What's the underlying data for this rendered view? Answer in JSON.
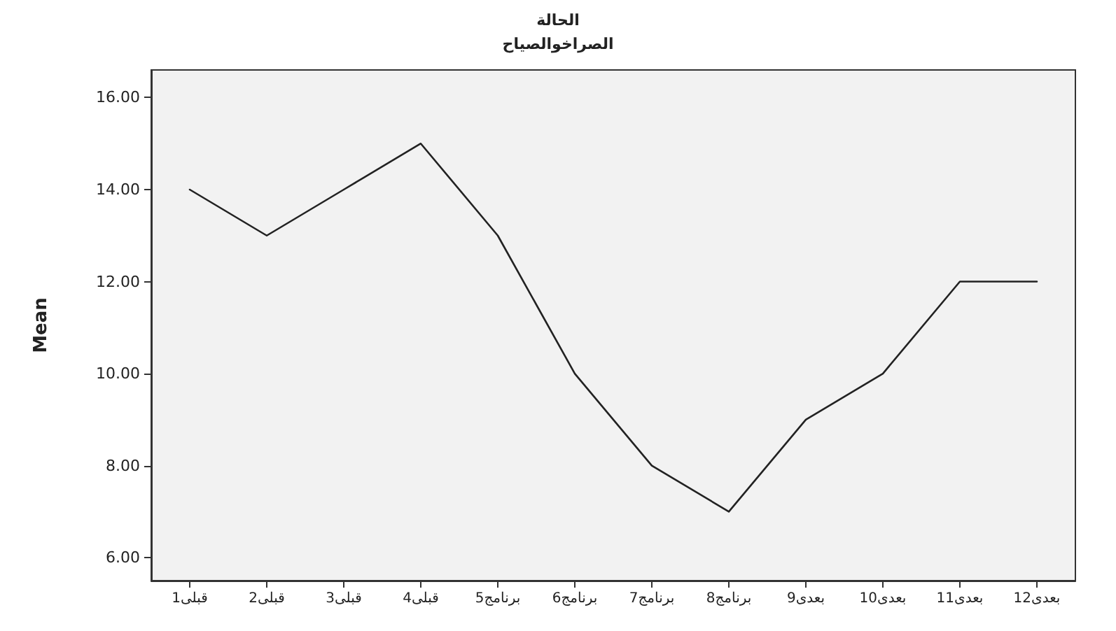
{
  "chart_data": {
    "type": "line",
    "title": "الحالة",
    "subtitle": "الصراخوالصياح",
    "ylabel": "Mean",
    "categories": [
      "قبلى1",
      "قبلى2",
      "قبلى3",
      "قبلى4",
      "برنامج5",
      "برنامج6",
      "برنامج7",
      "برنامج8",
      "بعدى9",
      "بعدى10",
      "بعدى11",
      "بعدى12"
    ],
    "values": [
      14,
      13,
      14,
      15,
      13,
      10,
      8,
      7,
      9,
      10,
      12,
      12
    ],
    "color": "#222222",
    "ylim": [
      5.5,
      16.6
    ],
    "yticks": [
      {
        "value": 6,
        "label": "6.00"
      },
      {
        "value": 8,
        "label": "8.00"
      },
      {
        "value": 10,
        "label": "10.00"
      },
      {
        "value": 12,
        "label": "12.00"
      },
      {
        "value": 14,
        "label": "14.00"
      },
      {
        "value": 16,
        "label": "16.00"
      }
    ],
    "grid": false,
    "marker": "none"
  }
}
